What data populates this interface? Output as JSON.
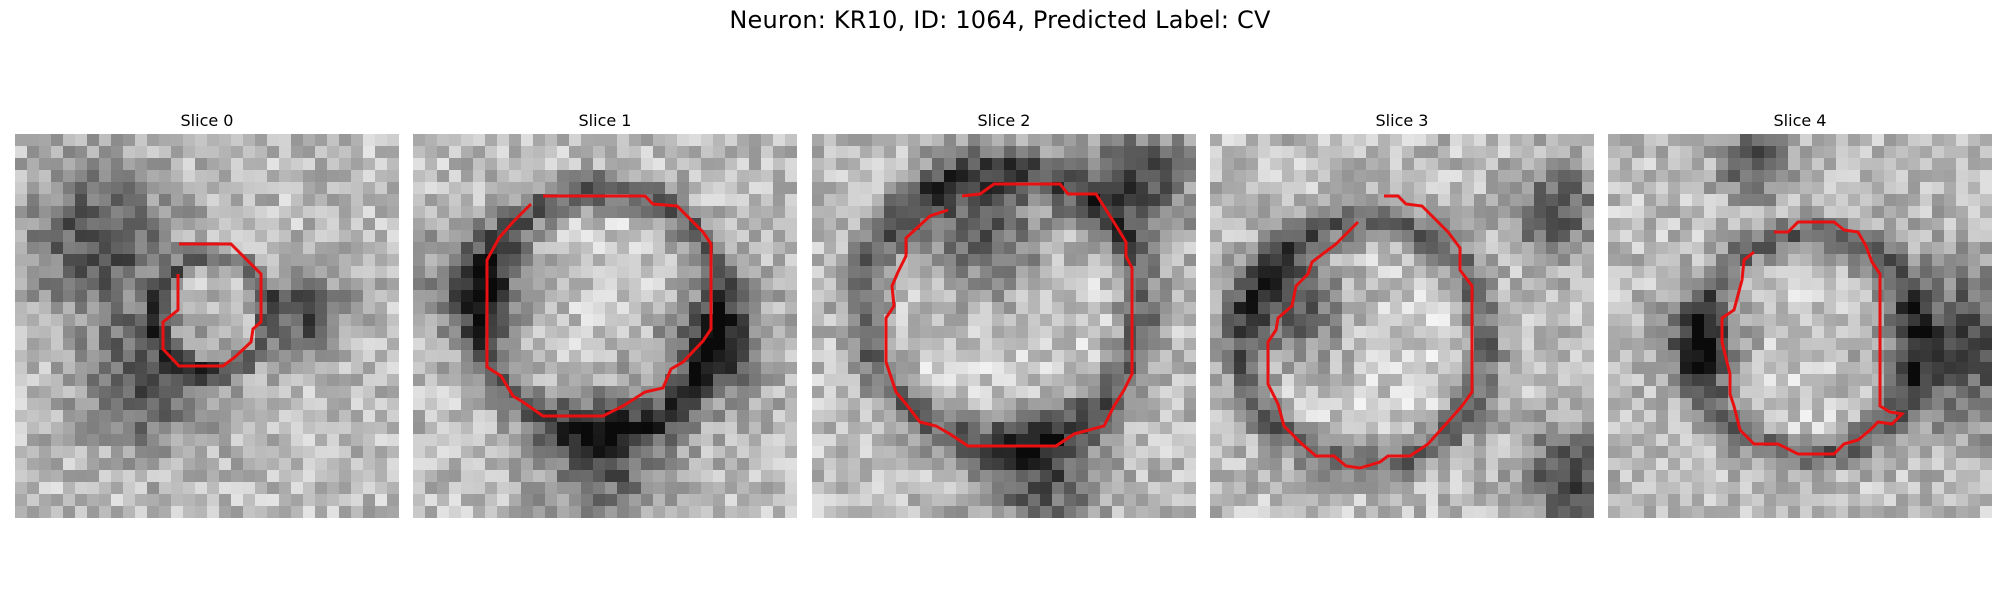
{
  "figure": {
    "title": "Neuron: KR10, ID: 1064, Predicted Label: CV"
  },
  "panels": [
    {
      "title": "Slice 0",
      "seed": 11,
      "dark_spots": [
        [
          0.22,
          0.27,
          0.13
        ],
        [
          0.35,
          0.64,
          0.12
        ],
        [
          0.75,
          0.47,
          0.08
        ]
      ]
    },
    {
      "title": "Slice 1",
      "seed": 23,
      "dark_spots": [
        [
          0.18,
          0.4,
          0.1
        ],
        [
          0.78,
          0.55,
          0.1
        ],
        [
          0.5,
          0.82,
          0.12
        ]
      ]
    },
    {
      "title": "Slice 2",
      "seed": 37,
      "dark_spots": [
        [
          0.85,
          0.12,
          0.1
        ],
        [
          0.45,
          0.25,
          0.12
        ],
        [
          0.6,
          0.88,
          0.11
        ]
      ]
    },
    {
      "title": "Slice 3",
      "seed": 41,
      "dark_spots": [
        [
          0.22,
          0.45,
          0.1
        ],
        [
          0.95,
          0.9,
          0.1
        ],
        [
          0.9,
          0.2,
          0.08
        ]
      ]
    },
    {
      "title": "Slice 4",
      "seed": 53,
      "dark_spots": [
        [
          0.25,
          0.55,
          0.08
        ],
        [
          0.92,
          0.55,
          0.15
        ],
        [
          0.38,
          0.08,
          0.06
        ]
      ]
    }
  ],
  "outline_color": "#e81010"
}
